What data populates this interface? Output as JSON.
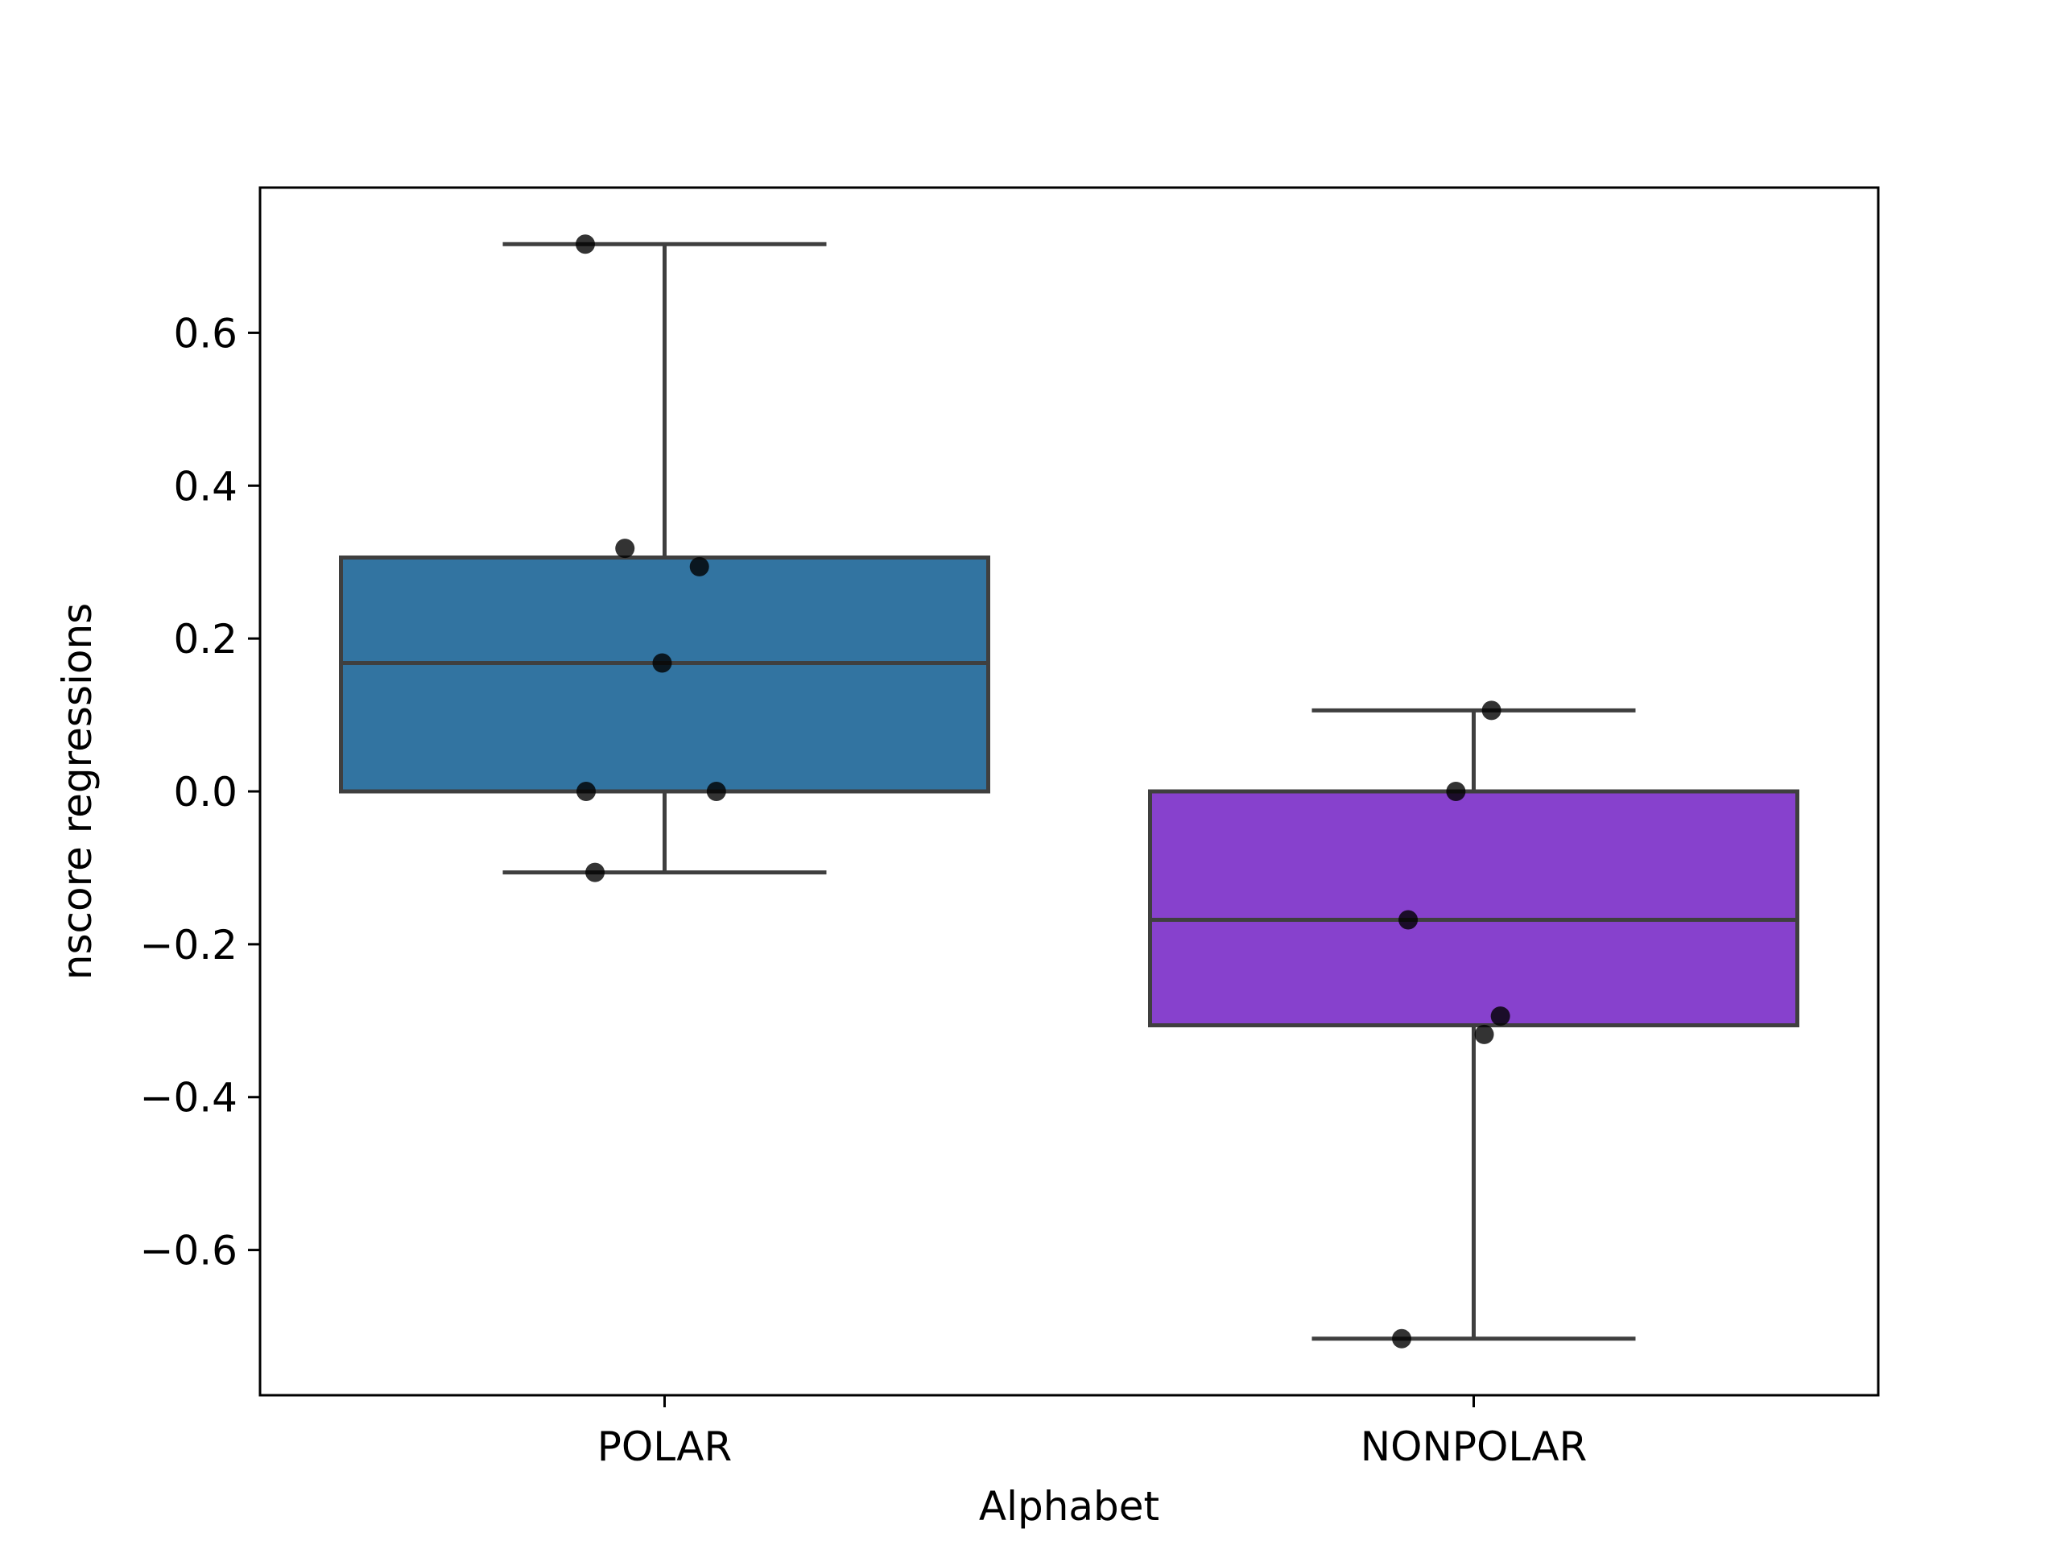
{
  "chart_data": {
    "type": "box",
    "title": "",
    "xlabel": "Alphabet",
    "ylabel": "nscore regressions",
    "categories": [
      "POLAR",
      "NONPOLAR"
    ],
    "ylim": [
      -0.79,
      0.79
    ],
    "yticks": [
      -0.6,
      -0.4,
      -0.2,
      0.0,
      0.2,
      0.4,
      0.6
    ],
    "ytick_labels": [
      "−0.6",
      "−0.4",
      "−0.2",
      "0.0",
      "0.2",
      "0.4",
      "0.6"
    ],
    "grid": false,
    "boxes": [
      {
        "category": "POLAR",
        "color": "#3274a1",
        "whisker_low": -0.106,
        "q1": 0.0,
        "median": 0.168,
        "q3": 0.306,
        "whisker_high": 0.716
      },
      {
        "category": "NONPOLAR",
        "color": "#8741cd",
        "whisker_low": -0.716,
        "q1": -0.306,
        "median": -0.168,
        "q3": 0.0,
        "whisker_high": 0.106
      }
    ],
    "points": [
      {
        "category": "POLAR",
        "jitter": -0.098,
        "y": 0.716
      },
      {
        "category": "POLAR",
        "jitter": -0.049,
        "y": 0.318
      },
      {
        "category": "POLAR",
        "jitter": 0.043,
        "y": 0.294
      },
      {
        "category": "POLAR",
        "jitter": -0.003,
        "y": 0.168
      },
      {
        "category": "POLAR",
        "jitter": -0.097,
        "y": 0.0
      },
      {
        "category": "POLAR",
        "jitter": 0.064,
        "y": 0.0
      },
      {
        "category": "POLAR",
        "jitter": -0.086,
        "y": -0.106
      },
      {
        "category": "NONPOLAR",
        "jitter": 0.022,
        "y": 0.106
      },
      {
        "category": "NONPOLAR",
        "jitter": -0.022,
        "y": 0.0
      },
      {
        "category": "NONPOLAR",
        "jitter": -0.081,
        "y": -0.168
      },
      {
        "category": "NONPOLAR",
        "jitter": 0.033,
        "y": -0.294
      },
      {
        "category": "NONPOLAR",
        "jitter": 0.013,
        "y": -0.318
      },
      {
        "category": "NONPOLAR",
        "jitter": -0.089,
        "y": -0.716
      }
    ],
    "colors": {
      "line": "#3f3f3f",
      "point": "#000000",
      "axes": "#000000"
    }
  }
}
